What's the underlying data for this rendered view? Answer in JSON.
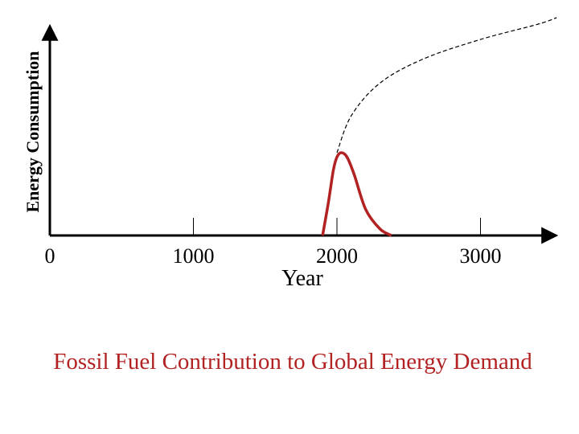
{
  "chart_data": {
    "type": "line",
    "xlabel": "Year",
    "ylabel": "Energy Consumption",
    "xlim": [
      0,
      3500
    ],
    "ylim": [
      0,
      1
    ],
    "x_ticks": [
      0,
      1000,
      2000,
      3000
    ],
    "x_tick_labels": [
      "0",
      "1000",
      "2000",
      "3000"
    ],
    "grid": false,
    "series": [
      {
        "style": "dashed",
        "color": "#000000",
        "points": [
          [
            2000,
            0.38
          ],
          [
            2100,
            0.55
          ],
          [
            2300,
            0.7
          ],
          [
            2600,
            0.81
          ],
          [
            3000,
            0.9
          ],
          [
            3400,
            0.97
          ],
          [
            3530,
            1.0
          ]
        ]
      },
      {
        "style": "solid",
        "color": "#b22222",
        "points": [
          [
            1900,
            0.0
          ],
          [
            1940,
            0.15
          ],
          [
            1975,
            0.3
          ],
          [
            2000,
            0.36
          ],
          [
            2030,
            0.38
          ],
          [
            2070,
            0.36
          ],
          [
            2120,
            0.28
          ],
          [
            2200,
            0.12
          ],
          [
            2300,
            0.03
          ],
          [
            2380,
            0.0
          ]
        ]
      }
    ]
  },
  "caption": {
    "text": "Fossil Fuel Contribution to Global Energy Demand",
    "color": "#b22222"
  }
}
